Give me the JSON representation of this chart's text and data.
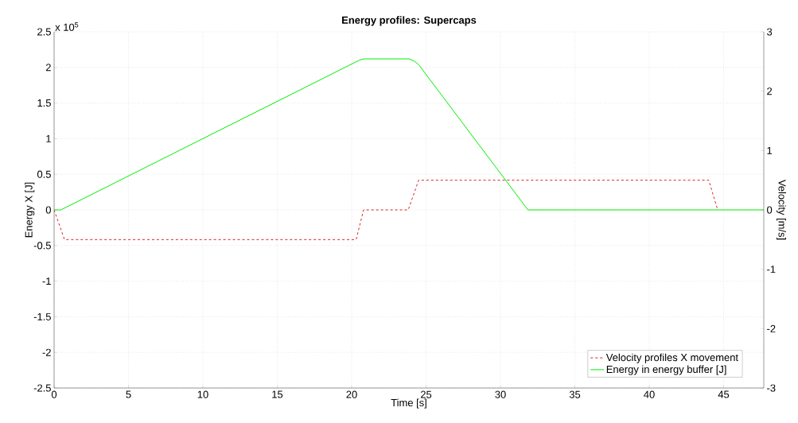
{
  "chart_data": {
    "type": "line",
    "title": "Energy profiles: Supercaps",
    "xlabel": "Time [s]",
    "ylabel": "Energy X [J]",
    "y2label": "Velocity [m/s]",
    "annotations": [
      "x 10$^{5}$"
    ],
    "xlim": [
      0,
      47.7
    ],
    "xticks": [
      0,
      5,
      10,
      15,
      20,
      25,
      30,
      35,
      40,
      45
    ],
    "ylim": [
      -2.5,
      2.5
    ],
    "yticks": [
      -2.5,
      -2,
      -1.5,
      -1,
      -0.5,
      0,
      0.5,
      1,
      1.5,
      2,
      2.5
    ],
    "y2lim": [
      -3,
      3
    ],
    "y2ticks": [
      -3,
      -2,
      -1,
      0,
      1,
      2,
      3
    ],
    "grid": true,
    "legend": "bottom right",
    "series": [
      {
        "name": "Velocity profiles X movement",
        "color": "#dd2222",
        "axis": "y2",
        "line_style": "dashed",
        "x": [
          0,
          0.7,
          20.3,
          20.8,
          23.8,
          24.5,
          44.0,
          44.6
        ],
        "values": [
          0,
          -0.5,
          -0.5,
          0,
          0,
          0.5,
          0.5,
          0
        ]
      },
      {
        "name": "Energy in energy buffer [J]",
        "color": "#00ee00",
        "axis": "y",
        "line_style": "solid",
        "x": [
          0,
          0.45,
          20.5,
          20.8,
          23.85,
          24.2,
          24.5,
          31.85,
          47.7
        ],
        "values": [
          0,
          0,
          2.1,
          2.12,
          2.12,
          2.09,
          2.04,
          0,
          0
        ]
      }
    ]
  }
}
